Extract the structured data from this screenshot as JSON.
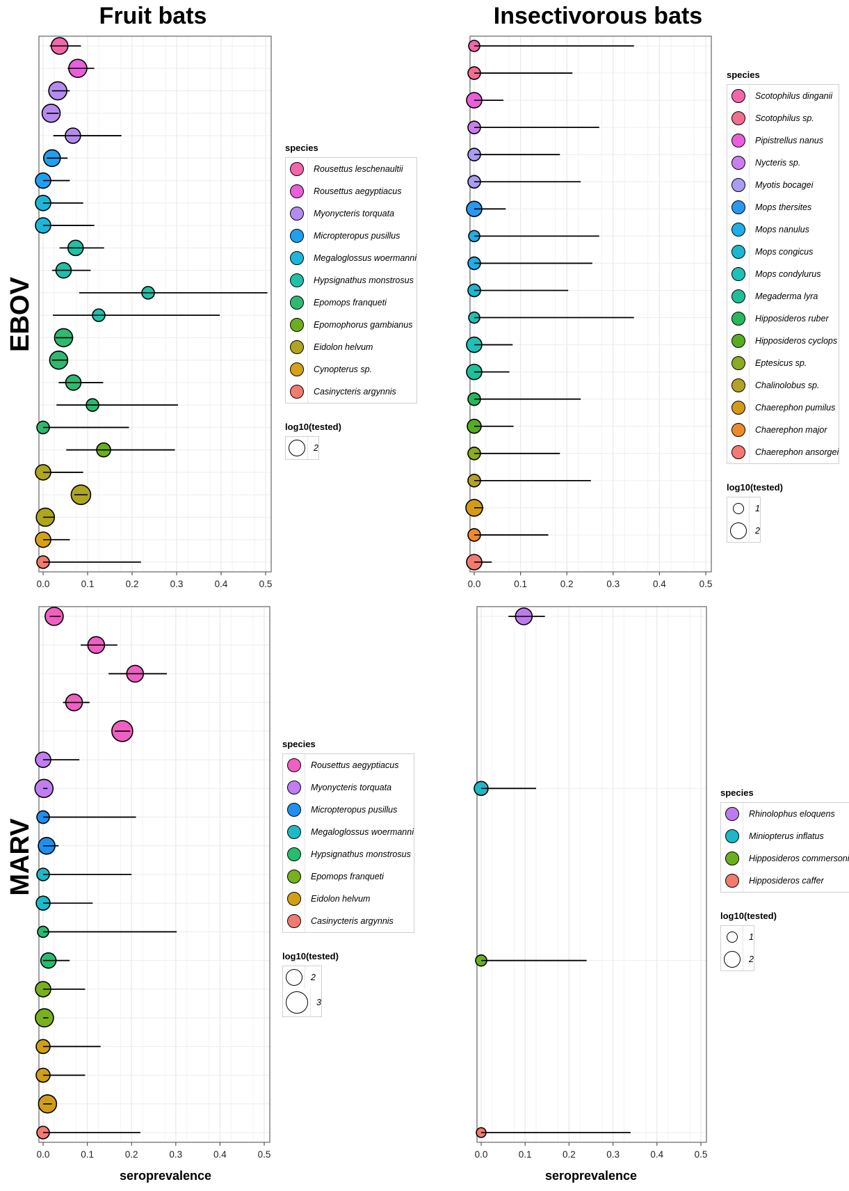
{
  "titles": {
    "col_fruit": "Fruit bats",
    "col_insect": "Insectivorous bats",
    "row_ebov": "EBOV",
    "row_marv": "MARV",
    "x_axis": "seroprevalence"
  },
  "chart_data": [
    {
      "id": "ebov-fruit",
      "type": "scatter",
      "xlim": [
        0,
        0.5
      ],
      "x_ticks": [
        "0.0",
        "0.1",
        "0.2",
        "0.3",
        "0.4",
        "0.5"
      ],
      "xlabel": "",
      "grid": true,
      "legend": {
        "species_title": "species",
        "species": [
          {
            "name": "Rousettus leschenaultii",
            "color": "#F366A8"
          },
          {
            "name": "Rousettus aegyptiacus",
            "color": "#E95FDB"
          },
          {
            "name": "Myonycteris torquata",
            "color": "#B48CF0"
          },
          {
            "name": "Micropteropus pusillus",
            "color": "#1FA0F0"
          },
          {
            "name": "Megaloglossus woermanni",
            "color": "#1CB6DA"
          },
          {
            "name": "Hypsignathus monstrosus",
            "color": "#21C0A8"
          },
          {
            "name": "Epomops franqueti",
            "color": "#2DBA6E"
          },
          {
            "name": "Epomophorus gambianus",
            "color": "#6BAF1E"
          },
          {
            "name": "Eidolon helvum",
            "color": "#AFA51E"
          },
          {
            "name": "Cynopterus sp.",
            "color": "#D6A018"
          },
          {
            "name": "Casinycteris argynnis",
            "color": "#F37A6E"
          }
        ],
        "size_title": "log10(tested)",
        "sizes": [
          {
            "label": "2",
            "r": 12
          }
        ]
      },
      "points": [
        {
          "species": 0,
          "x": 0.037,
          "lo": 0.015,
          "hi": 0.085,
          "r": 12
        },
        {
          "species": 1,
          "x": 0.078,
          "lo": 0.055,
          "hi": 0.115,
          "r": 13
        },
        {
          "species": 2,
          "x": 0.033,
          "lo": 0.02,
          "hi": 0.06,
          "r": 13
        },
        {
          "species": 2,
          "x": 0.018,
          "lo": 0.008,
          "hi": 0.035,
          "r": 13
        },
        {
          "species": 2,
          "x": 0.067,
          "lo": 0.023,
          "hi": 0.176,
          "r": 11
        },
        {
          "species": 3,
          "x": 0.02,
          "lo": 0.008,
          "hi": 0.055,
          "r": 12
        },
        {
          "species": 3,
          "x": 0.0,
          "lo": 0.0,
          "hi": 0.06,
          "r": 11
        },
        {
          "species": 4,
          "x": 0.0,
          "lo": 0.0,
          "hi": 0.09,
          "r": 11
        },
        {
          "species": 4,
          "x": 0.0,
          "lo": 0.0,
          "hi": 0.115,
          "r": 11
        },
        {
          "species": 5,
          "x": 0.073,
          "lo": 0.037,
          "hi": 0.137,
          "r": 11
        },
        {
          "species": 5,
          "x": 0.046,
          "lo": 0.02,
          "hi": 0.107,
          "r": 11
        },
        {
          "species": 5,
          "x": 0.236,
          "lo": 0.081,
          "hi": 0.504,
          "r": 9
        },
        {
          "species": 5,
          "x": 0.125,
          "lo": 0.022,
          "hi": 0.397,
          "r": 9
        },
        {
          "species": 6,
          "x": 0.046,
          "lo": 0.028,
          "hi": 0.068,
          "r": 13
        },
        {
          "species": 6,
          "x": 0.035,
          "lo": 0.02,
          "hi": 0.055,
          "r": 13
        },
        {
          "species": 6,
          "x": 0.068,
          "lo": 0.035,
          "hi": 0.135,
          "r": 11
        },
        {
          "species": 6,
          "x": 0.111,
          "lo": 0.03,
          "hi": 0.303,
          "r": 9
        },
        {
          "species": 6,
          "x": 0.0,
          "lo": 0.0,
          "hi": 0.193,
          "r": 9
        },
        {
          "species": 7,
          "x": 0.136,
          "lo": 0.052,
          "hi": 0.296,
          "r": 10
        },
        {
          "species": 8,
          "x": 0.0,
          "lo": 0.0,
          "hi": 0.09,
          "r": 11
        },
        {
          "species": 8,
          "x": 0.085,
          "lo": 0.07,
          "hi": 0.1,
          "r": 14
        },
        {
          "species": 8,
          "x": 0.005,
          "lo": 0.0,
          "hi": 0.025,
          "r": 13
        },
        {
          "species": 9,
          "x": 0.0,
          "lo": 0.0,
          "hi": 0.06,
          "r": 11
        },
        {
          "species": 10,
          "x": 0.0,
          "lo": 0.0,
          "hi": 0.22,
          "r": 9
        }
      ]
    },
    {
      "id": "ebov-insect",
      "type": "scatter",
      "xlim": [
        0,
        0.5
      ],
      "x_ticks": [
        "0.0",
        "0.1",
        "0.2",
        "0.3",
        "0.4",
        "0.5"
      ],
      "xlabel": "",
      "grid": true,
      "legend": {
        "species_title": "species",
        "species": [
          {
            "name": "Scotophilus dinganii",
            "color": "#F366A8"
          },
          {
            "name": "Scotophilus sp.",
            "color": "#F36D90"
          },
          {
            "name": "Pipistrellus nanus",
            "color": "#E95FDB"
          },
          {
            "name": "Nycteris sp.",
            "color": "#CC7EF0"
          },
          {
            "name": "Myotis bocagei",
            "color": "#A99CF2"
          },
          {
            "name": "Mops thersites",
            "color": "#2A98EE"
          },
          {
            "name": "Mops nanulus",
            "color": "#1FAEE8"
          },
          {
            "name": "Mops congicus",
            "color": "#1CB8D2"
          },
          {
            "name": "Mops condylurus",
            "color": "#1EC0B8"
          },
          {
            "name": "Megaderma lyra",
            "color": "#20BF98"
          },
          {
            "name": "Hipposideros ruber",
            "color": "#27B85A"
          },
          {
            "name": "Hipposideros cyclops",
            "color": "#55AD22"
          },
          {
            "name": "Eptesicus sp.",
            "color": "#8AAB22"
          },
          {
            "name": "Chalinolobus sp.",
            "color": "#B4A226"
          },
          {
            "name": "Chaerephon pumilus",
            "color": "#D69A1A"
          },
          {
            "name": "Chaerephon major",
            "color": "#EE8A2A"
          },
          {
            "name": "Chaerephon ansorgei",
            "color": "#F37A6E"
          }
        ],
        "size_title": "log10(tested)",
        "sizes": [
          {
            "label": "1",
            "r": 8
          },
          {
            "label": "2",
            "r": 12
          }
        ]
      },
      "points": [
        {
          "species": 0,
          "x": 0.0,
          "lo": 0.0,
          "hi": 0.345,
          "r": 8
        },
        {
          "species": 1,
          "x": 0.0,
          "lo": 0.0,
          "hi": 0.212,
          "r": 9
        },
        {
          "species": 2,
          "x": 0.0,
          "lo": 0.0,
          "hi": 0.063,
          "r": 11
        },
        {
          "species": 3,
          "x": 0.0,
          "lo": 0.0,
          "hi": 0.27,
          "r": 9
        },
        {
          "species": 4,
          "x": 0.0,
          "lo": 0.0,
          "hi": 0.185,
          "r": 9
        },
        {
          "species": 4,
          "x": 0.0,
          "lo": 0.0,
          "hi": 0.23,
          "r": 9
        },
        {
          "species": 5,
          "x": 0.0,
          "lo": 0.0,
          "hi": 0.068,
          "r": 11
        },
        {
          "species": 6,
          "x": 0.0,
          "lo": 0.0,
          "hi": 0.27,
          "r": 8
        },
        {
          "species": 6,
          "x": 0.0,
          "lo": 0.0,
          "hi": 0.255,
          "r": 9
        },
        {
          "species": 7,
          "x": 0.0,
          "lo": 0.0,
          "hi": 0.203,
          "r": 9
        },
        {
          "species": 8,
          "x": 0.0,
          "lo": 0.0,
          "hi": 0.345,
          "r": 8
        },
        {
          "species": 8,
          "x": 0.0,
          "lo": 0.0,
          "hi": 0.083,
          "r": 11
        },
        {
          "species": 9,
          "x": 0.0,
          "lo": 0.0,
          "hi": 0.076,
          "r": 11
        },
        {
          "species": 10,
          "x": 0.0,
          "lo": 0.0,
          "hi": 0.23,
          "r": 9
        },
        {
          "species": 11,
          "x": 0.0,
          "lo": 0.0,
          "hi": 0.085,
          "r": 10
        },
        {
          "species": 12,
          "x": 0.0,
          "lo": 0.0,
          "hi": 0.185,
          "r": 9
        },
        {
          "species": 13,
          "x": 0.0,
          "lo": 0.0,
          "hi": 0.252,
          "r": 9
        },
        {
          "species": 14,
          "x": 0.0,
          "lo": 0.0,
          "hi": 0.02,
          "r": 12
        },
        {
          "species": 15,
          "x": 0.0,
          "lo": 0.0,
          "hi": 0.16,
          "r": 9
        },
        {
          "species": 16,
          "x": 0.0,
          "lo": 0.0,
          "hi": 0.038,
          "r": 11
        }
      ]
    },
    {
      "id": "marv-fruit",
      "type": "scatter",
      "xlim": [
        0,
        0.5
      ],
      "x_ticks": [
        "0.0",
        "0.1",
        "0.2",
        "0.3",
        "0.4",
        "0.5"
      ],
      "xlabel": "seroprevalence",
      "grid": true,
      "legend": {
        "species_title": "species",
        "species": [
          {
            "name": "Rousettus aegyptiacus",
            "color": "#F05FC2"
          },
          {
            "name": "Myonycteris torquata",
            "color": "#C07EF2"
          },
          {
            "name": "Micropteropus pusillus",
            "color": "#2090F0"
          },
          {
            "name": "Megaloglossus woermanni",
            "color": "#1CBAC8"
          },
          {
            "name": "Hypsignathus monstrosus",
            "color": "#25BE6E"
          },
          {
            "name": "Epomops franqueti",
            "color": "#78B01E"
          },
          {
            "name": "Eidolon helvum",
            "color": "#D09E18"
          },
          {
            "name": "Casinycteris argynnis",
            "color": "#F37A6E"
          }
        ],
        "size_title": "log10(tested)",
        "sizes": [
          {
            "label": "2",
            "r": 12
          },
          {
            "label": "3",
            "r": 16
          }
        ]
      },
      "points": [
        {
          "species": 0,
          "x": 0.025,
          "lo": 0.015,
          "hi": 0.04,
          "r": 13
        },
        {
          "species": 0,
          "x": 0.12,
          "lo": 0.085,
          "hi": 0.168,
          "r": 12
        },
        {
          "species": 0,
          "x": 0.208,
          "lo": 0.148,
          "hi": 0.28,
          "r": 12
        },
        {
          "species": 0,
          "x": 0.07,
          "lo": 0.045,
          "hi": 0.105,
          "r": 12
        },
        {
          "species": 0,
          "x": 0.179,
          "lo": 0.162,
          "hi": 0.197,
          "r": 15
        },
        {
          "species": 1,
          "x": 0.0,
          "lo": 0.0,
          "hi": 0.082,
          "r": 11
        },
        {
          "species": 1,
          "x": 0.002,
          "lo": 0.0,
          "hi": 0.01,
          "r": 13
        },
        {
          "species": 2,
          "x": 0.0,
          "lo": 0.0,
          "hi": 0.21,
          "r": 9
        },
        {
          "species": 2,
          "x": 0.008,
          "lo": 0.0,
          "hi": 0.035,
          "r": 12
        },
        {
          "species": 3,
          "x": 0.0,
          "lo": 0.0,
          "hi": 0.2,
          "r": 9
        },
        {
          "species": 3,
          "x": 0.0,
          "lo": 0.0,
          "hi": 0.112,
          "r": 10
        },
        {
          "species": 4,
          "x": 0.0,
          "lo": 0.0,
          "hi": 0.302,
          "r": 8
        },
        {
          "species": 4,
          "x": 0.012,
          "lo": 0.0,
          "hi": 0.06,
          "r": 11
        },
        {
          "species": 5,
          "x": 0.0,
          "lo": 0.0,
          "hi": 0.095,
          "r": 11
        },
        {
          "species": 5,
          "x": 0.003,
          "lo": 0.0,
          "hi": 0.012,
          "r": 13
        },
        {
          "species": 6,
          "x": 0.0,
          "lo": 0.0,
          "hi": 0.13,
          "r": 10
        },
        {
          "species": 6,
          "x": 0.0,
          "lo": 0.0,
          "hi": 0.095,
          "r": 10
        },
        {
          "species": 6,
          "x": 0.01,
          "lo": 0.0,
          "hi": 0.02,
          "r": 13
        },
        {
          "species": 7,
          "x": 0.0,
          "lo": 0.0,
          "hi": 0.22,
          "r": 9
        }
      ]
    },
    {
      "id": "marv-insect",
      "type": "scatter",
      "xlim": [
        0,
        0.5
      ],
      "x_ticks": [
        "0.0",
        "0.1",
        "0.2",
        "0.3",
        "0.4",
        "0.5"
      ],
      "xlabel": "seroprevalence",
      "grid": true,
      "legend": {
        "species_title": "species",
        "species": [
          {
            "name": "Rhinolophus eloquens",
            "color": "#C07AF0"
          },
          {
            "name": "Miniopterus inflatus",
            "color": "#1CB8C8"
          },
          {
            "name": "Hipposideros commersoni",
            "color": "#6BAF1E"
          },
          {
            "name": "Hipposideros caffer",
            "color": "#F37A6E"
          }
        ],
        "size_title": "log10(tested)",
        "sizes": [
          {
            "label": "1",
            "r": 8
          },
          {
            "label": "2",
            "r": 12
          }
        ]
      },
      "points": [
        {
          "species": 0,
          "x": 0.097,
          "lo": 0.062,
          "hi": 0.145,
          "r": 12
        },
        {
          "species": 1,
          "x": 0.0,
          "lo": 0.0,
          "hi": 0.125,
          "r": 10
        },
        {
          "species": 2,
          "x": 0.0,
          "lo": 0.0,
          "hi": 0.24,
          "r": 8
        },
        {
          "species": 3,
          "x": 0.0,
          "lo": 0.0,
          "hi": 0.34,
          "r": 7
        }
      ]
    }
  ]
}
